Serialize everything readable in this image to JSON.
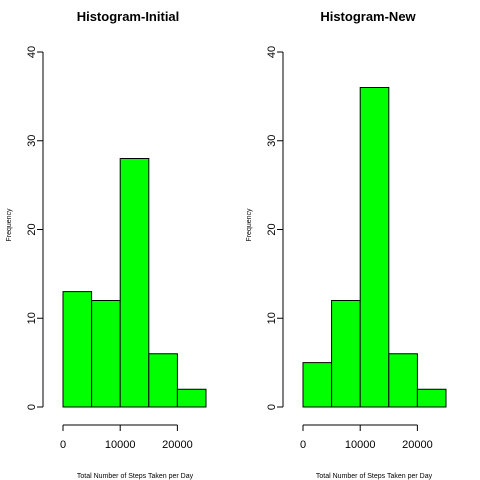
{
  "chart_data": [
    {
      "type": "bar",
      "title": "Histogram-Initial",
      "xlabel": "Total Number of Steps Taken per Day",
      "ylabel": "Frequency",
      "bins": [
        [
          0,
          5000
        ],
        [
          5000,
          10000
        ],
        [
          10000,
          15000
        ],
        [
          15000,
          20000
        ],
        [
          20000,
          25000
        ]
      ],
      "values": [
        13,
        12,
        28,
        6,
        2
      ],
      "xlim": [
        0,
        25000
      ],
      "ylim": [
        0,
        40
      ],
      "x_ticks": [
        0,
        10000,
        20000
      ],
      "x_tick_labels": [
        "0",
        "10000",
        "20000"
      ],
      "y_ticks": [
        0,
        10,
        20,
        30,
        40
      ],
      "y_tick_labels": [
        "0",
        "10",
        "20",
        "30",
        "40"
      ],
      "bar_color": "#00ff00",
      "grid": false
    },
    {
      "type": "bar",
      "title": "Histogram-New",
      "xlabel": "Total Number of Steps Taken per Day",
      "ylabel": "Frequency",
      "bins": [
        [
          0,
          5000
        ],
        [
          5000,
          10000
        ],
        [
          10000,
          15000
        ],
        [
          15000,
          20000
        ],
        [
          20000,
          25000
        ]
      ],
      "values": [
        5,
        12,
        36,
        6,
        2
      ],
      "xlim": [
        0,
        25000
      ],
      "ylim": [
        0,
        40
      ],
      "x_ticks": [
        0,
        10000,
        20000
      ],
      "x_tick_labels": [
        "0",
        "10000",
        "20000"
      ],
      "y_ticks": [
        0,
        10,
        20,
        30,
        40
      ],
      "y_tick_labels": [
        "0",
        "10",
        "20",
        "30",
        "40"
      ],
      "bar_color": "#00ff00",
      "grid": false
    }
  ]
}
